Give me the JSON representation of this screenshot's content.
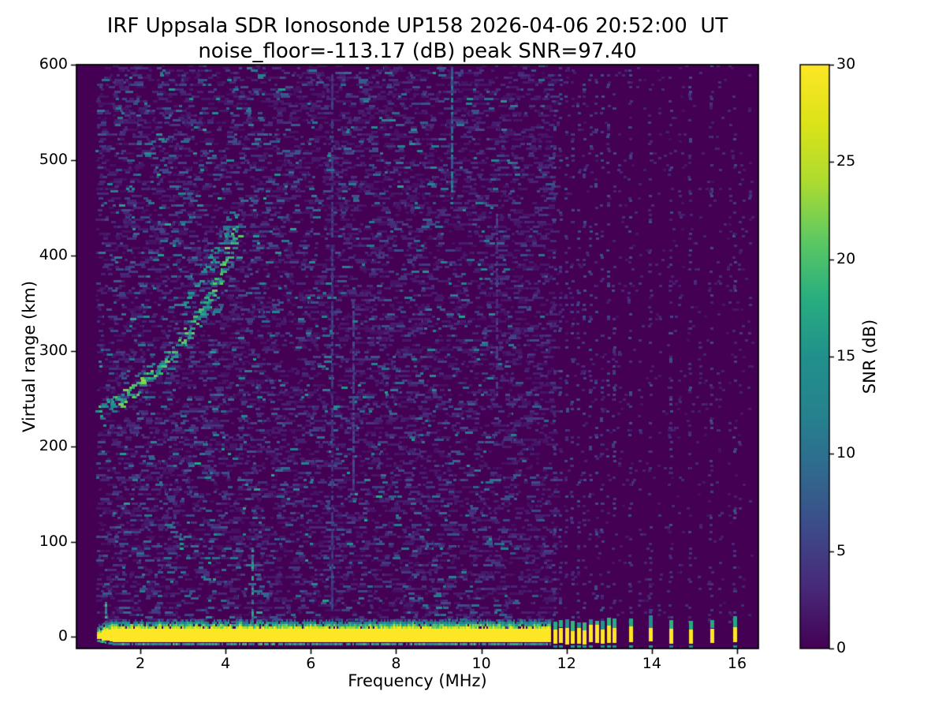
{
  "chart_data": {
    "type": "heatmap",
    "title": "IRF Uppsala SDR Ionosonde UP158 2026-04-06 20:52:00  UT",
    "subtitle": "noise_floor=-113.17 (dB) peak SNR=97.40",
    "xlabel": "Frequency (MHz)",
    "ylabel": "Virtual range (km)",
    "xlim": [
      0.5,
      16.5
    ],
    "ylim": [
      -12,
      600
    ],
    "xticks": [
      2,
      4,
      6,
      8,
      10,
      12,
      14,
      16
    ],
    "yticks": [
      0,
      100,
      200,
      300,
      400,
      500,
      600
    ],
    "grid": false,
    "colorbar": {
      "label": "SNR (dB)",
      "min": 0,
      "max": 30,
      "ticks": [
        0,
        5,
        10,
        15,
        20,
        25,
        30
      ],
      "colormap": "viridis"
    },
    "colormap_anchors": [
      "#440154",
      "#482878",
      "#3e4989",
      "#31688e",
      "#26828e",
      "#21918c",
      "#28ae80",
      "#5ec962",
      "#addc30",
      "#dce319",
      "#fde725"
    ],
    "background_value_color": "#440154",
    "noise_floor_db": -113.17,
    "peak_snr_db": 97.4,
    "features": {
      "data_start_mhz": 0.95,
      "data_end_mhz": 16.38,
      "ground_band": {
        "f_start": 0.98,
        "f_end": 11.63,
        "km_core_low": -5,
        "km_core_high": 9,
        "fuzz_max_km": 35,
        "value_db": 30
      },
      "bar_cluster_mhz": [
        11.72,
        11.86,
        12.0,
        12.14,
        12.28,
        12.42,
        12.56,
        12.7,
        12.84,
        12.98,
        13.12
      ],
      "bar_spaced_mhz": [
        13.5,
        13.97,
        14.45,
        14.9,
        15.4,
        15.95
      ],
      "echo_trace_main": [
        [
          1.02,
          236
        ],
        [
          1.3,
          245
        ],
        [
          1.6,
          253
        ],
        [
          1.9,
          264
        ],
        [
          2.2,
          275
        ],
        [
          2.5,
          288
        ],
        [
          2.8,
          302
        ],
        [
          3.1,
          320
        ],
        [
          3.4,
          342
        ],
        [
          3.65,
          363
        ],
        [
          3.85,
          384
        ],
        [
          4.0,
          400
        ],
        [
          4.15,
          417
        ],
        [
          4.28,
          433
        ]
      ],
      "echo_trace_upper": [
        [
          3.0,
          345
        ],
        [
          3.2,
          361
        ],
        [
          3.4,
          377
        ],
        [
          3.6,
          393
        ],
        [
          3.8,
          409
        ],
        [
          3.95,
          423
        ],
        [
          4.1,
          437
        ],
        [
          4.22,
          449
        ]
      ],
      "vertical_stripes": [
        {
          "mhz": 1.18,
          "km": [
            8,
            40
          ],
          "db": 14
        },
        {
          "mhz": 4.62,
          "km": [
            0,
            95
          ],
          "db": 13
        },
        {
          "mhz": 6.5,
          "km": [
            0,
            590
          ],
          "db": 4
        },
        {
          "mhz": 7.0,
          "km": [
            150,
            350
          ],
          "db": 5
        },
        {
          "mhz": 9.3,
          "km": [
            450,
            598
          ],
          "db": 9
        },
        {
          "mhz": 10.35,
          "km": [
            250,
            450
          ],
          "db": 4
        }
      ]
    }
  }
}
